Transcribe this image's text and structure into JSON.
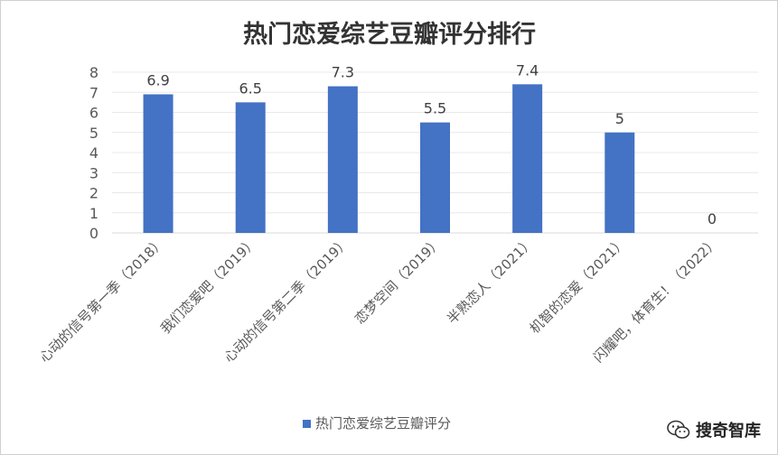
{
  "chart_data": {
    "type": "bar",
    "title": "热门恋爱综艺豆瓣评分排行",
    "categories": [
      "心动的信号第一季（2018）",
      "我们恋爱吧（2019）",
      "心动的信号第二季（2019）",
      "恋梦空间（2019）",
      "半熟恋人（2021）",
      "机智的恋爱（2021）",
      "闪耀吧，体育生！（2022）"
    ],
    "series": [
      {
        "name": "热门恋爱综艺豆瓣评分",
        "values": [
          6.9,
          6.5,
          7.3,
          5.5,
          7.4,
          5,
          0
        ],
        "color": "#4472C4"
      }
    ],
    "data_labels": [
      "6.9",
      "6.5",
      "7.3",
      "5.5",
      "7.4",
      "5",
      "0"
    ],
    "ylim": [
      0,
      8
    ],
    "yticks": [
      0,
      1,
      2,
      3,
      4,
      5,
      6,
      7,
      8
    ],
    "grid": true,
    "legend_position": "bottom"
  },
  "watermark": {
    "icon": "wechat-icon",
    "text": "搜奇智库"
  }
}
